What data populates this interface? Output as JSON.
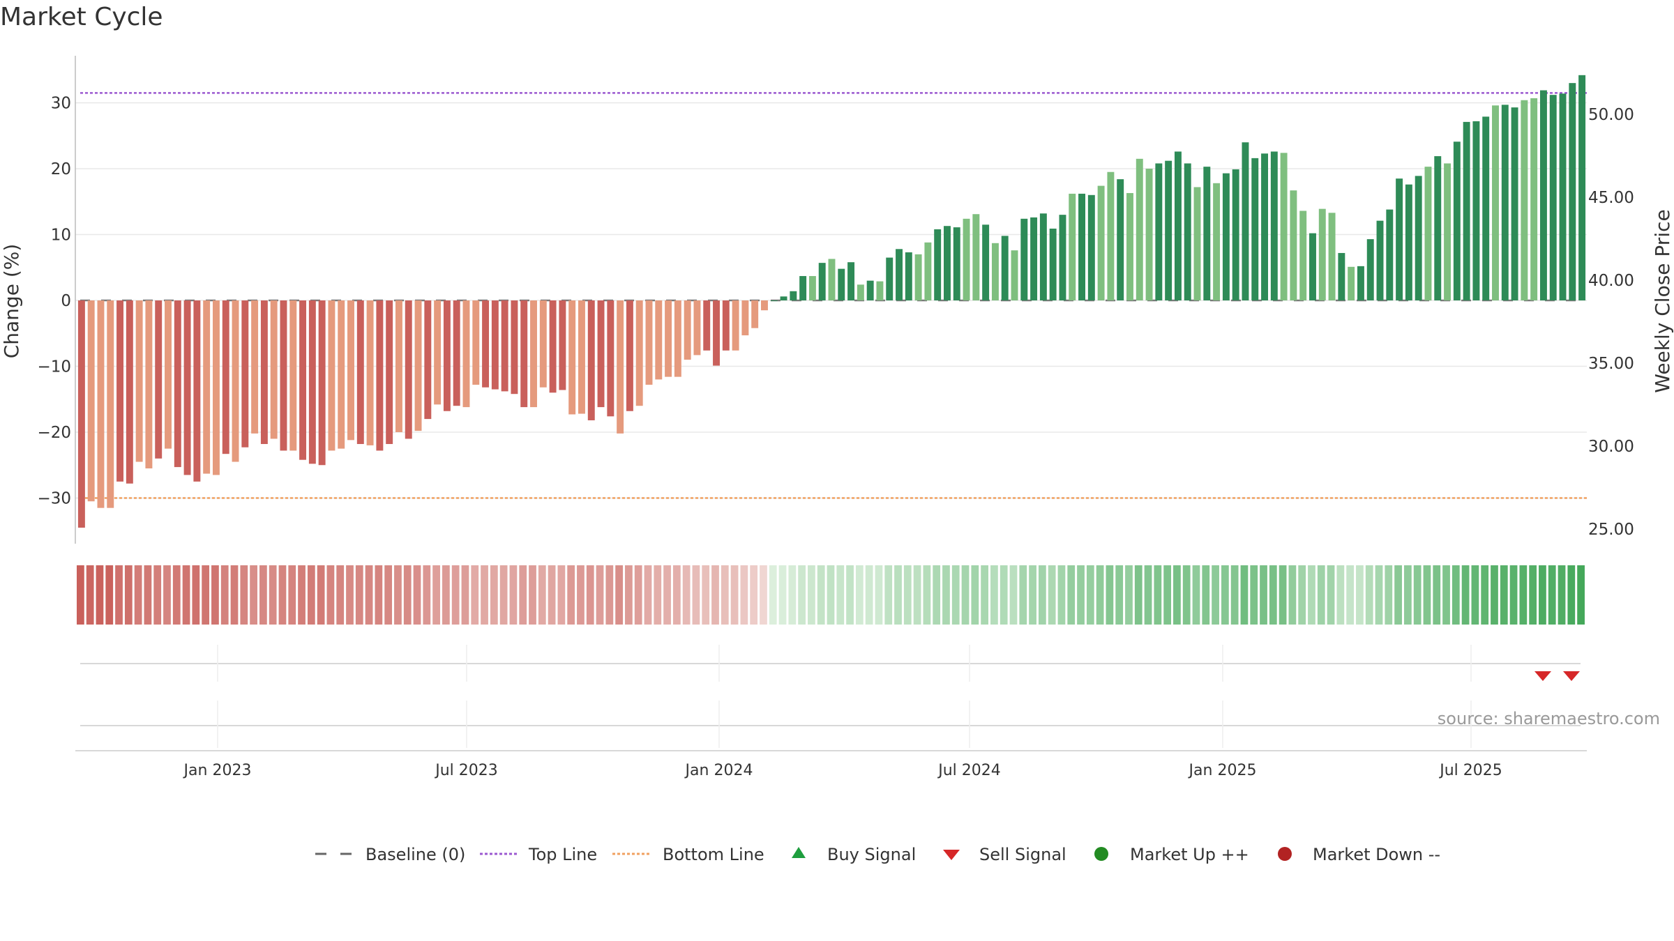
{
  "title": "Market Cycle",
  "source_note": "source: sharemaestro.com",
  "colors": {
    "down_dark": "#c9605b",
    "down_light": "#e59a7d",
    "up_dark": "#2e8b57",
    "up_light": "#7fbf7f",
    "top_line": "#9b59d0",
    "bottom_line": "#f0a060",
    "baseline": "#666666",
    "buy": "#1e9e3e",
    "sell": "#d62728",
    "market_up": "#228b22",
    "market_down": "#b22222"
  },
  "legend": [
    {
      "label": "Baseline (0)",
      "icon": "dash-line-icon"
    },
    {
      "label": "Top Line",
      "icon": "dotted-line-icon"
    },
    {
      "label": "Bottom Line",
      "icon": "dotted-line-icon"
    },
    {
      "label": "Buy Signal",
      "icon": "up-triangle-icon"
    },
    {
      "label": "Sell Signal",
      "icon": "down-triangle-icon"
    },
    {
      "label": "Market Up ++",
      "icon": "circle-icon"
    },
    {
      "label": "Market Down --",
      "icon": "circle-icon"
    }
  ],
  "chart_data": {
    "type": "bar",
    "title": "Market Cycle",
    "ylabel_left": "Change (%)",
    "ylabel_right": "Weekly Close Price",
    "left_ticks": [
      30,
      20,
      10,
      0,
      -10,
      -20,
      -30
    ],
    "left_tick_labels": [
      "30",
      "20",
      "10",
      "0",
      "−10",
      "−20",
      "−30"
    ],
    "ylim_left": [
      -36,
      37
    ],
    "right_ticks": [
      50,
      45,
      40,
      35,
      30,
      25
    ],
    "right_tick_labels": [
      "50.00",
      "45.00",
      "40.00",
      "35.00",
      "30.00",
      "25.00"
    ],
    "x_ticks": [
      "Jan 2023",
      "Jul 2023",
      "Jan 2024",
      "Jul 2024",
      "Jan 2025",
      "Jul 2025"
    ],
    "top_line": 31.5,
    "bottom_line": -30,
    "baseline": 0,
    "values": [
      -34.5,
      -30.5,
      -31.5,
      -31.5,
      -27.5,
      -27.8,
      -24.5,
      -25.5,
      -24,
      -22.5,
      -25.3,
      -26.5,
      -27.5,
      -26.3,
      -26.5,
      -23.3,
      -24.5,
      -22.3,
      -20.2,
      -21.8,
      -21,
      -22.8,
      -22.8,
      -24.2,
      -24.8,
      -25,
      -22.8,
      -22.5,
      -21.2,
      -21.8,
      -22,
      -22.8,
      -21.8,
      -20,
      -21,
      -19.8,
      -18,
      -15.8,
      -16.8,
      -16,
      -16.2,
      -12.8,
      -13.2,
      -13.5,
      -13.8,
      -14.2,
      -16.2,
      -16.2,
      -13.2,
      -14,
      -13.6,
      -17.3,
      -17.2,
      -18.2,
      -16.2,
      -17.6,
      -20.2,
      -16.8,
      -16,
      -12.8,
      -12,
      -11.6,
      -11.6,
      -9,
      -8.3,
      -7.6,
      -9.9,
      -7.6,
      -7.6,
      -5.3,
      -4.2,
      -1.5,
      0,
      0.6,
      1.4,
      3.7,
      3.7,
      5.7,
      6.3,
      4.8,
      5.8,
      2.4,
      3,
      2.9,
      6.5,
      7.8,
      7.3,
      7,
      8.8,
      10.8,
      11.3,
      11.1,
      12.4,
      13.1,
      11.5,
      8.7,
      9.8,
      7.6,
      12.4,
      12.6,
      13.2,
      10.9,
      13,
      16.2,
      16.2,
      16,
      17.4,
      19.5,
      18.4,
      16.3,
      21.5,
      20,
      20.8,
      21.2,
      22.6,
      20.8,
      17.2,
      20.3,
      17.8,
      19.3,
      19.9,
      24,
      21.6,
      22.3,
      22.6,
      22.4,
      16.7,
      13.6,
      10.2,
      13.9,
      13.3,
      7.2,
      5.1,
      5.2,
      9.3,
      12.1,
      13.8,
      18.5,
      17.6,
      18.9,
      20.3,
      21.9,
      20.8,
      24.1,
      27.1,
      27.2,
      27.9,
      29.6,
      29.7,
      29.3,
      30.4,
      30.7,
      31.9,
      31.2,
      31.4,
      33,
      34.2
    ]
  }
}
